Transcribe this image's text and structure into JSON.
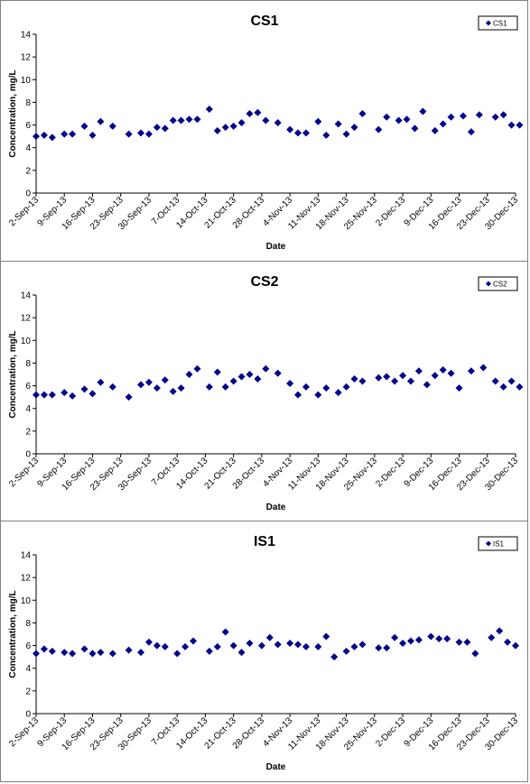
{
  "chart_data": [
    {
      "type": "scatter",
      "title": "CS1",
      "xlabel": "Date",
      "ylabel": "Concentration, mg/L",
      "ylim": [
        0,
        14
      ],
      "yticks": [
        0,
        2,
        4,
        6,
        8,
        10,
        12,
        14
      ],
      "xticks": [
        "2-Sep-13",
        "9-Sep-13",
        "16-Sep-13",
        "23-Sep-13",
        "30-Sep-13",
        "7-Oct-13",
        "14-Oct-13",
        "21-Oct-13",
        "28-Oct-13",
        "4-Nov-13",
        "11-Nov-13",
        "18-Nov-13",
        "25-Nov-13",
        "2-Dec-13",
        "9-Dec-13",
        "16-Dec-13",
        "23-Dec-13",
        "30-Dec-13"
      ],
      "xlim": [
        "2-Sep-13",
        "30-Dec-13"
      ],
      "legend": "top-right",
      "marker_color": "#00008B",
      "series": [
        {
          "name": "CS1",
          "x": [
            "2-Sep-13",
            "4-Sep-13",
            "6-Sep-13",
            "9-Sep-13",
            "11-Sep-13",
            "14-Sep-13",
            "16-Sep-13",
            "18-Sep-13",
            "21-Sep-13",
            "25-Sep-13",
            "28-Sep-13",
            "30-Sep-13",
            "2-Oct-13",
            "4-Oct-13",
            "6-Oct-13",
            "8-Oct-13",
            "10-Oct-13",
            "12-Oct-13",
            "15-Oct-13",
            "17-Oct-13",
            "19-Oct-13",
            "21-Oct-13",
            "23-Oct-13",
            "25-Oct-13",
            "27-Oct-13",
            "29-Oct-13",
            "1-Nov-13",
            "4-Nov-13",
            "6-Nov-13",
            "8-Nov-13",
            "11-Nov-13",
            "13-Nov-13",
            "16-Nov-13",
            "18-Nov-13",
            "20-Nov-13",
            "22-Nov-13",
            "26-Nov-13",
            "28-Nov-13",
            "1-Dec-13",
            "3-Dec-13",
            "5-Dec-13",
            "7-Dec-13",
            "10-Dec-13",
            "12-Dec-13",
            "14-Dec-13",
            "17-Dec-13",
            "19-Dec-13",
            "21-Dec-13",
            "25-Dec-13",
            "27-Dec-13",
            "29-Dec-13",
            "31-Dec-13"
          ],
          "y": [
            5.0,
            5.1,
            4.9,
            5.2,
            5.2,
            5.9,
            5.1,
            6.3,
            5.9,
            5.2,
            5.3,
            5.2,
            5.8,
            5.7,
            6.4,
            6.4,
            6.5,
            6.5,
            7.4,
            5.5,
            5.8,
            5.9,
            6.2,
            7.0,
            7.1,
            6.4,
            6.2,
            5.6,
            5.3,
            5.3,
            6.3,
            5.1,
            6.1,
            5.2,
            5.8,
            7.0,
            5.6,
            6.7,
            6.4,
            6.5,
            5.7,
            7.2,
            5.5,
            6.1,
            6.7,
            6.8,
            5.4,
            6.9,
            6.7,
            6.9,
            6.0,
            6.0
          ]
        }
      ]
    },
    {
      "type": "scatter",
      "title": "CS2",
      "xlabel": "Date",
      "ylabel": "Concentration, mg/L",
      "ylim": [
        0,
        14
      ],
      "yticks": [
        0,
        2,
        4,
        6,
        8,
        10,
        12,
        14
      ],
      "xticks": [
        "2-Sep-13",
        "9-Sep-13",
        "16-Sep-13",
        "23-Sep-13",
        "30-Sep-13",
        "7-Oct-13",
        "14-Oct-13",
        "21-Oct-13",
        "28-Oct-13",
        "4-Nov-13",
        "11-Nov-13",
        "18-Nov-13",
        "25-Nov-13",
        "2-Dec-13",
        "9-Dec-13",
        "16-Dec-13",
        "23-Dec-13",
        "30-Dec-13"
      ],
      "xlim": [
        "2-Sep-13",
        "30-Dec-13"
      ],
      "legend": "top-right",
      "marker_color": "#00008B",
      "series": [
        {
          "name": "CS2",
          "x": [
            "2-Sep-13",
            "4-Sep-13",
            "6-Sep-13",
            "9-Sep-13",
            "11-Sep-13",
            "14-Sep-13",
            "16-Sep-13",
            "18-Sep-13",
            "21-Sep-13",
            "25-Sep-13",
            "28-Sep-13",
            "30-Sep-13",
            "2-Oct-13",
            "4-Oct-13",
            "6-Oct-13",
            "8-Oct-13",
            "10-Oct-13",
            "12-Oct-13",
            "15-Oct-13",
            "17-Oct-13",
            "19-Oct-13",
            "21-Oct-13",
            "23-Oct-13",
            "25-Oct-13",
            "27-Oct-13",
            "29-Oct-13",
            "1-Nov-13",
            "4-Nov-13",
            "6-Nov-13",
            "8-Nov-13",
            "11-Nov-13",
            "13-Nov-13",
            "16-Nov-13",
            "18-Nov-13",
            "20-Nov-13",
            "22-Nov-13",
            "26-Nov-13",
            "28-Nov-13",
            "30-Nov-13",
            "2-Dec-13",
            "4-Dec-13",
            "6-Dec-13",
            "8-Dec-13",
            "10-Dec-13",
            "12-Dec-13",
            "14-Dec-13",
            "16-Dec-13",
            "19-Dec-13",
            "22-Dec-13",
            "25-Dec-13",
            "27-Dec-13",
            "29-Dec-13",
            "31-Dec-13"
          ],
          "y": [
            5.2,
            5.2,
            5.2,
            5.4,
            5.1,
            5.7,
            5.3,
            6.3,
            5.9,
            5.0,
            6.1,
            6.3,
            5.8,
            6.5,
            5.5,
            5.8,
            7.0,
            7.5,
            5.9,
            7.2,
            5.9,
            6.4,
            6.8,
            7.0,
            6.6,
            7.5,
            7.1,
            6.2,
            5.2,
            5.9,
            5.2,
            5.8,
            5.4,
            5.9,
            6.6,
            6.4,
            6.7,
            6.8,
            6.4,
            6.9,
            6.4,
            7.3,
            6.1,
            6.9,
            7.4,
            7.1,
            5.8,
            7.3,
            7.6,
            6.4,
            5.9,
            6.4,
            5.9
          ]
        }
      ]
    },
    {
      "type": "scatter",
      "title": "IS1",
      "xlabel": "Date",
      "ylabel": "Concentration, mg/L",
      "ylim": [
        0,
        14
      ],
      "yticks": [
        0,
        2,
        4,
        6,
        8,
        10,
        12,
        14
      ],
      "xticks": [
        "2-Sep-13",
        "9-Sep-13",
        "16-Sep-13",
        "23-Sep-13",
        "30-Sep-13",
        "7-Oct-13",
        "14-Oct-13",
        "21-Oct-13",
        "28-Oct-13",
        "4-Nov-13",
        "11-Nov-13",
        "18-Nov-13",
        "25-Nov-13",
        "2-Dec-13",
        "9-Dec-13",
        "16-Dec-13",
        "23-Dec-13",
        "30-Dec-13"
      ],
      "xlim": [
        "2-Sep-13",
        "30-Dec-13"
      ],
      "legend": "top-right",
      "marker_color": "#00008B",
      "series": [
        {
          "name": "IS1",
          "x": [
            "2-Sep-13",
            "4-Sep-13",
            "6-Sep-13",
            "9-Sep-13",
            "11-Sep-13",
            "14-Sep-13",
            "16-Sep-13",
            "18-Sep-13",
            "21-Sep-13",
            "25-Sep-13",
            "28-Sep-13",
            "30-Sep-13",
            "2-Oct-13",
            "4-Oct-13",
            "7-Oct-13",
            "9-Oct-13",
            "11-Oct-13",
            "15-Oct-13",
            "17-Oct-13",
            "19-Oct-13",
            "21-Oct-13",
            "23-Oct-13",
            "25-Oct-13",
            "28-Oct-13",
            "30-Oct-13",
            "1-Nov-13",
            "4-Nov-13",
            "6-Nov-13",
            "8-Nov-13",
            "11-Nov-13",
            "13-Nov-13",
            "15-Nov-13",
            "18-Nov-13",
            "20-Nov-13",
            "22-Nov-13",
            "26-Nov-13",
            "28-Nov-13",
            "30-Nov-13",
            "2-Dec-13",
            "4-Dec-13",
            "6-Dec-13",
            "9-Dec-13",
            "11-Dec-13",
            "13-Dec-13",
            "16-Dec-13",
            "18-Dec-13",
            "20-Dec-13",
            "24-Dec-13",
            "26-Dec-13",
            "28-Dec-13",
            "30-Dec-13"
          ],
          "y": [
            5.3,
            5.7,
            5.5,
            5.4,
            5.3,
            5.7,
            5.3,
            5.4,
            5.3,
            5.6,
            5.4,
            6.3,
            6.0,
            5.9,
            5.3,
            5.9,
            6.4,
            5.5,
            5.9,
            7.2,
            6.0,
            5.4,
            6.2,
            6.0,
            6.7,
            6.1,
            6.2,
            6.1,
            5.9,
            5.9,
            6.8,
            5.0,
            5.5,
            5.9,
            6.1,
            5.8,
            5.8,
            6.7,
            6.2,
            6.4,
            6.5,
            6.8,
            6.6,
            6.6,
            6.3,
            6.3,
            5.3,
            6.7,
            7.3,
            6.3,
            6.0
          ]
        }
      ]
    }
  ]
}
